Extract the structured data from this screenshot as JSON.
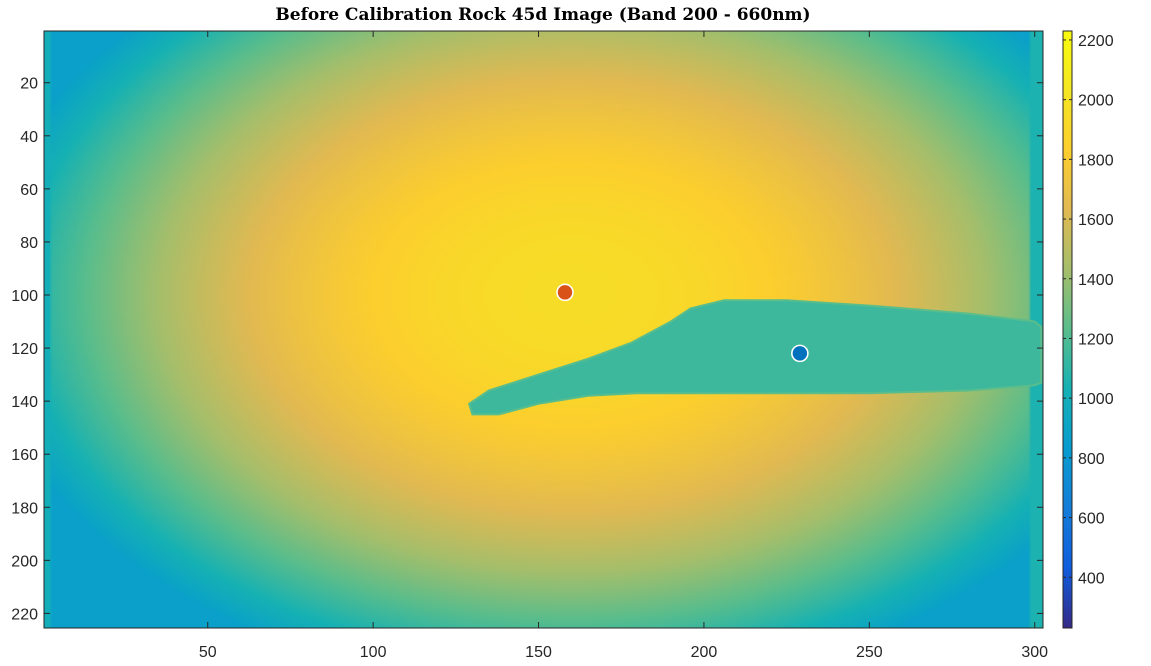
{
  "chart_data": {
    "type": "heatmap",
    "title": "Before Calibration Rock 45d Image (Band 200 - 660nm)",
    "xlabel": "",
    "ylabel": "",
    "xlim": [
      0.5,
      302.5
    ],
    "ylim": [
      225.5,
      0.5
    ],
    "x_ticks": [
      50,
      100,
      150,
      200,
      250,
      300
    ],
    "y_ticks": [
      20,
      40,
      60,
      80,
      100,
      120,
      140,
      160,
      180,
      200,
      220
    ],
    "colormap": "parula",
    "colorbar": {
      "range": [
        230,
        2230
      ],
      "ticks": [
        400,
        600,
        800,
        1000,
        1200,
        1400,
        1600,
        1800,
        2000,
        2200
      ]
    },
    "background_model": {
      "center": [
        160,
        100
      ],
      "peak_value": 1950,
      "edge_value": 1200
    },
    "rock_region": {
      "value": 1150,
      "outline": [
        [
          129,
          141
        ],
        [
          135,
          136
        ],
        [
          150,
          130
        ],
        [
          165,
          124
        ],
        [
          178,
          118
        ],
        [
          190,
          110
        ],
        [
          196,
          105
        ],
        [
          206,
          102
        ],
        [
          225,
          102
        ],
        [
          250,
          104
        ],
        [
          280,
          107
        ],
        [
          300,
          110
        ],
        [
          302,
          112
        ],
        [
          302,
          133
        ],
        [
          300,
          134
        ],
        [
          280,
          136
        ],
        [
          250,
          137
        ],
        [
          225,
          137
        ],
        [
          200,
          137
        ],
        [
          180,
          137
        ],
        [
          165,
          138
        ],
        [
          150,
          141
        ],
        [
          138,
          145
        ],
        [
          130,
          145
        ]
      ]
    },
    "points": [
      {
        "name": "",
        "x": 158,
        "y": 99,
        "color": "#D95319"
      },
      {
        "name": "",
        "x": 229,
        "y": 122,
        "color": "#0072BD"
      }
    ]
  }
}
